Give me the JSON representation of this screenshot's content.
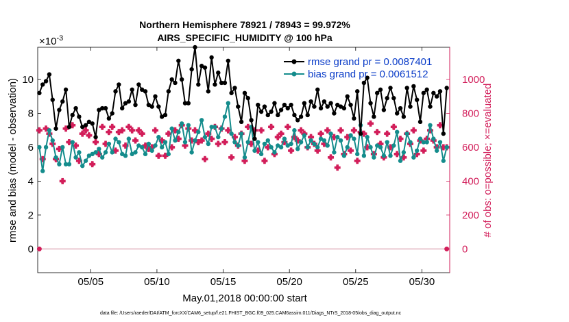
{
  "colors": {
    "rmse": "#000000",
    "bias": "#148c8c",
    "obs": "#d21e5a",
    "legend_text": "#0a3cc8",
    "axes": "#000000"
  },
  "chart_data": {
    "type": "line",
    "title": "Northern Hemisphere 78921 / 78943 = 99.972%",
    "subtitle": "AIRS_SPECIFIC_HUMIDITY @ 100 hPa",
    "xlabel": "May.01,2018 00:00:00 start",
    "ylabel_left": "rmse and bias (model - observation)",
    "ylabel_right": "# of obs: o=possible; ×=evaluated",
    "left_exponent": "×10",
    "left_exponent_power": "-3",
    "xlim": [
      1.0,
      32.1
    ],
    "ylim_left": [
      -1.4,
      11.9
    ],
    "ylim_right": [
      -140,
      1190
    ],
    "x_ticks": [
      5,
      10,
      15,
      20,
      25,
      30
    ],
    "x_tick_labels": [
      "05/05",
      "05/10",
      "05/15",
      "05/20",
      "05/25",
      "05/30"
    ],
    "y_left_ticks": [
      0,
      2,
      4,
      6,
      8,
      10
    ],
    "y_left_tick_labels": [
      "0",
      "2",
      "4",
      "6",
      "8",
      "10"
    ],
    "y_right_ticks": [
      0,
      200,
      400,
      600,
      800,
      1000
    ],
    "y_right_tick_labels": [
      "0",
      "200",
      "400",
      "600",
      "800",
      "1000"
    ],
    "legend": {
      "placement": "top-right",
      "rmse_label": "rmse grand pr = 0.0087401",
      "bias_label": "bias grand pr = 0.0061512"
    },
    "series": [
      {
        "name": "rmse",
        "x": [
          1.125,
          1.375,
          1.625,
          1.875,
          2.125,
          2.375,
          2.625,
          2.875,
          3.125,
          3.375,
          3.625,
          3.875,
          4.125,
          4.375,
          4.625,
          4.875,
          5.125,
          5.375,
          5.625,
          5.875,
          6.125,
          6.375,
          6.625,
          6.875,
          7.125,
          7.375,
          7.625,
          7.875,
          8.125,
          8.375,
          8.625,
          8.875,
          9.125,
          9.375,
          9.625,
          9.875,
          10.125,
          10.375,
          10.625,
          10.875,
          11.125,
          11.375,
          11.625,
          11.875,
          12.125,
          12.375,
          12.625,
          12.875,
          13.125,
          13.375,
          13.625,
          13.875,
          14.125,
          14.375,
          14.625,
          14.875,
          15.125,
          15.375,
          15.625,
          15.875,
          16.125,
          16.375,
          16.625,
          16.875,
          17.125,
          17.375,
          17.625,
          17.875,
          18.125,
          18.375,
          18.625,
          18.875,
          19.125,
          19.375,
          19.625,
          19.875,
          20.125,
          20.375,
          20.625,
          20.875,
          21.125,
          21.375,
          21.625,
          21.875,
          22.125,
          22.375,
          22.625,
          22.875,
          23.125,
          23.375,
          23.625,
          23.875,
          24.125,
          24.375,
          24.625,
          24.875,
          25.125,
          25.375,
          25.625,
          25.875,
          26.125,
          26.375,
          26.625,
          26.875,
          27.125,
          27.375,
          27.625,
          27.875,
          28.125,
          28.375,
          28.625,
          28.875,
          29.125,
          29.375,
          29.625,
          29.875,
          30.125,
          30.375,
          30.625,
          30.875,
          31.125,
          31.375,
          31.625,
          31.875
        ],
        "values": [
          9.2,
          9.7,
          9.9,
          10.3,
          8.8,
          7.1,
          8.2,
          8.7,
          9.4,
          7.2,
          7.9,
          8.3,
          7.8,
          7.2,
          7.3,
          7.5,
          7.4,
          6.6,
          8.2,
          8.3,
          8.3,
          7.7,
          8.0,
          9.3,
          9.7,
          8.3,
          8.6,
          8.7,
          9.4,
          8.5,
          9.7,
          9.4,
          9.3,
          8.5,
          8.4,
          9.0,
          8.4,
          7.8,
          7.9,
          9.3,
          10.0,
          9.8,
          11.1,
          10.0,
          8.6,
          8.6,
          10.6,
          11.9,
          9.7,
          10.8,
          10.7,
          9.3,
          11.3,
          9.7,
          10.4,
          9.8,
          9.8,
          11.1,
          9.2,
          9.5,
          8.4,
          7.5,
          9.2,
          8.9,
          7.6,
          6.5,
          8.5,
          8.1,
          8.4,
          7.9,
          8.1,
          8.6,
          7.9,
          8.2,
          8.5,
          8.3,
          8.5,
          7.9,
          7.6,
          7.8,
          8.6,
          7.9,
          8.7,
          8.4,
          9.4,
          8.3,
          8.7,
          8.4,
          8.6,
          8.0,
          8.5,
          8.4,
          8.3,
          9.0,
          8.5,
          7.7,
          9.3,
          6.8,
          9.8,
          10.1,
          8.6,
          7.8,
          9.2,
          9.4,
          8.2,
          8.9,
          9.5,
          8.9,
          8.0,
          8.3,
          7.8,
          9.5,
          8.4,
          9.6,
          8.8,
          7.5,
          9.2,
          9.4,
          8.4,
          9.2,
          9.0,
          9.3,
          6.8,
          9.5
        ]
      },
      {
        "name": "bias",
        "x": [
          1.125,
          1.375,
          1.625,
          1.875,
          2.125,
          2.375,
          2.625,
          2.875,
          3.125,
          3.375,
          3.625,
          3.875,
          4.125,
          4.375,
          4.625,
          4.875,
          5.125,
          5.375,
          5.625,
          5.875,
          6.125,
          6.375,
          6.625,
          6.875,
          7.125,
          7.375,
          7.625,
          7.875,
          8.125,
          8.375,
          8.625,
          8.875,
          9.125,
          9.375,
          9.625,
          9.875,
          10.125,
          10.375,
          10.625,
          10.875,
          11.125,
          11.375,
          11.625,
          11.875,
          12.125,
          12.375,
          12.625,
          12.875,
          13.125,
          13.375,
          13.625,
          13.875,
          14.125,
          14.375,
          14.625,
          14.875,
          15.125,
          15.375,
          15.625,
          15.875,
          16.125,
          16.375,
          16.625,
          16.875,
          17.125,
          17.375,
          17.625,
          17.875,
          18.125,
          18.375,
          18.625,
          18.875,
          19.125,
          19.375,
          19.625,
          19.875,
          20.125,
          20.375,
          20.625,
          20.875,
          21.125,
          21.375,
          21.625,
          21.875,
          22.125,
          22.375,
          22.625,
          22.875,
          23.125,
          23.375,
          23.625,
          23.875,
          24.125,
          24.375,
          24.625,
          24.875,
          25.125,
          25.375,
          25.625,
          25.875,
          26.125,
          26.375,
          26.625,
          26.875,
          27.125,
          27.375,
          27.625,
          27.875,
          28.125,
          28.375,
          28.625,
          28.875,
          29.125,
          29.375,
          29.625,
          29.875,
          30.125,
          30.375,
          30.625,
          30.875,
          31.125,
          31.375,
          31.625,
          31.875
        ],
        "values": [
          6.0,
          4.6,
          6.0,
          7.0,
          6.4,
          5.4,
          5.0,
          6.0,
          5.0,
          5.0,
          6.3,
          5.4,
          5.7,
          4.9,
          5.2,
          5.5,
          5.6,
          5.7,
          5.9,
          5.4,
          5.7,
          6.2,
          5.7,
          6.5,
          6.3,
          5.6,
          5.5,
          6.5,
          5.6,
          5.7,
          6.1,
          6.0,
          5.6,
          6.2,
          5.8,
          6.1,
          6.6,
          6.0,
          6.3,
          5.6,
          7.1,
          6.4,
          6.9,
          7.4,
          6.3,
          7.3,
          5.7,
          6.4,
          6.9,
          7.6,
          6.6,
          6.2,
          7.2,
          7.2,
          6.6,
          7.1,
          7.8,
          8.6,
          6.8,
          6.3,
          6.1,
          6.8,
          5.4,
          6.3,
          7.2,
          5.8,
          6.3,
          5.6,
          6.2,
          6.4,
          6.0,
          5.7,
          6.1,
          6.0,
          6.5,
          6.1,
          6.2,
          7.0,
          5.9,
          6.3,
          6.7,
          6.0,
          6.4,
          6.2,
          6.0,
          6.5,
          6.4,
          6.1,
          6.8,
          5.7,
          6.6,
          6.4,
          5.5,
          6.0,
          6.7,
          6.5,
          5.6,
          7.3,
          5.5,
          6.6,
          6.0,
          5.4,
          6.1,
          6.0,
          5.5,
          6.3,
          5.5,
          6.1,
          6.9,
          5.2,
          5.7,
          6.8,
          6.3,
          5.4,
          5.8,
          6.5,
          6.3,
          6.3,
          7.3,
          6.5,
          5.8,
          6.3,
          5.2,
          6.0
        ]
      },
      {
        "name": "obs evaluated",
        "x": [
          1.125,
          1.375,
          1.625,
          1.875,
          2.125,
          2.375,
          2.625,
          2.875,
          3.125,
          3.375,
          3.625,
          3.875,
          4.125,
          4.375,
          4.625,
          4.875,
          5.125,
          5.375,
          5.625,
          5.875,
          6.125,
          6.375,
          6.625,
          6.875,
          7.125,
          7.375,
          7.625,
          7.875,
          8.125,
          8.375,
          8.625,
          8.875,
          9.125,
          9.375,
          9.625,
          9.875,
          10.125,
          10.375,
          10.625,
          10.875,
          11.125,
          11.375,
          11.625,
          11.875,
          12.125,
          12.375,
          12.625,
          12.875,
          13.125,
          13.375,
          13.625,
          13.875,
          14.125,
          14.375,
          14.625,
          14.875,
          15.125,
          15.375,
          15.625,
          15.875,
          16.125,
          16.375,
          16.625,
          16.875,
          17.125,
          17.375,
          17.625,
          17.875,
          18.125,
          18.375,
          18.625,
          18.875,
          19.125,
          19.375,
          19.625,
          19.875,
          20.125,
          20.375,
          20.625,
          20.875,
          21.125,
          21.375,
          21.625,
          21.875,
          22.125,
          22.375,
          22.625,
          22.875,
          23.125,
          23.375,
          23.625,
          23.875,
          24.125,
          24.375,
          24.625,
          24.875,
          25.125,
          25.375,
          25.625,
          25.875,
          26.125,
          26.375,
          26.625,
          26.875,
          27.125,
          27.375,
          27.625,
          27.875,
          28.125,
          28.375,
          28.625,
          28.875,
          29.125,
          29.375,
          29.625,
          29.875,
          30.125,
          30.375,
          30.625,
          30.875,
          31.125,
          31.375,
          31.625,
          31.875
        ],
        "values": [
          700,
          530,
          710,
          680,
          620,
          530,
          590,
          400,
          710,
          630,
          730,
          610,
          520,
          680,
          700,
          670,
          500,
          630,
          560,
          720,
          620,
          690,
          720,
          580,
          690,
          700,
          610,
          720,
          700,
          640,
          700,
          680,
          610,
          590,
          600,
          700,
          550,
          640,
          550,
          680,
          600,
          700,
          650,
          730,
          610,
          710,
          640,
          700,
          630,
          640,
          530,
          680,
          650,
          720,
          620,
          710,
          630,
          700,
          540,
          660,
          610,
          680,
          520,
          720,
          620,
          700,
          580,
          700,
          520,
          600,
          720,
          560,
          660,
          680,
          630,
          720,
          580,
          660,
          640,
          700,
          680,
          600,
          660,
          620,
          580,
          680,
          620,
          700,
          540,
          660,
          480,
          700,
          560,
          660,
          580,
          700,
          520,
          690,
          680,
          600,
          740,
          560,
          690,
          620,
          540,
          680,
          600,
          720,
          560,
          650,
          540,
          680,
          620,
          700,
          560,
          640,
          580,
          650,
          700,
          640,
          600,
          730,
          600,
          600
        ]
      },
      {
        "name": "obs possible",
        "x": [
          1.125,
          31.875
        ],
        "values": [
          0,
          0
        ]
      }
    ]
  },
  "footer": {
    "data_file": "data file: /Users/raeder/DAI/ATM_forcXX/CAM6_setup/f.e21.FHIST_BGC.f09_025.CAM6assim.011/Diags_NTrS_2018-05/obs_diag_output.nc"
  }
}
